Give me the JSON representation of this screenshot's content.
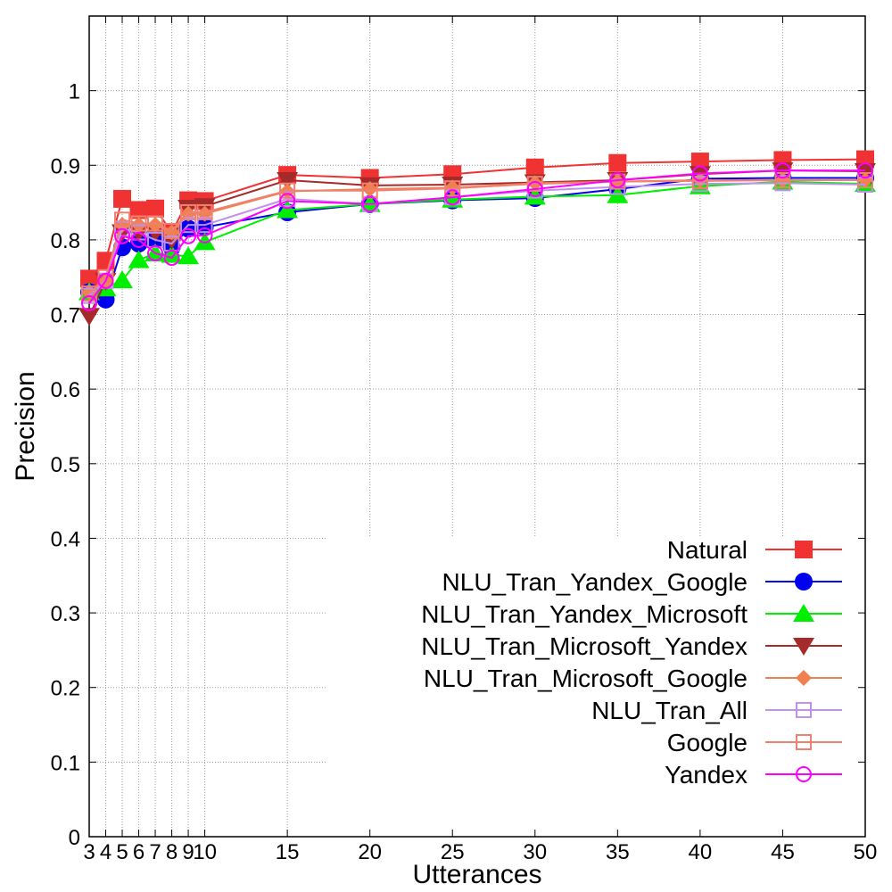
{
  "chart_data": {
    "type": "line",
    "title": "",
    "xlabel": "Utterances",
    "ylabel": "Precision",
    "xlim": [
      3,
      50
    ],
    "ylim": [
      0,
      1.1
    ],
    "x_ticks": [
      3,
      4,
      5,
      6,
      7,
      8,
      9,
      10,
      15,
      20,
      25,
      30,
      35,
      40,
      45,
      50
    ],
    "y_ticks": [
      0,
      0.1,
      0.2,
      0.3,
      0.4,
      0.5,
      0.6,
      0.7,
      0.8,
      0.9,
      1
    ],
    "y_tick_labels": [
      "0",
      "0.1",
      "0.2",
      "0.3",
      "0.4",
      "0.5",
      "0.6",
      "0.7",
      "0.8",
      "0.9",
      "1"
    ],
    "grid": true,
    "legend_position": "bottom-right",
    "x": [
      3,
      4,
      5,
      6,
      7,
      8,
      9,
      10,
      15,
      20,
      25,
      30,
      35,
      40,
      45,
      50
    ],
    "series": [
      {
        "name": "Natural",
        "color": "#f03232",
        "marker": "square-filled",
        "values": [
          0.748,
          0.772,
          0.855,
          0.84,
          0.842,
          0.81,
          0.853,
          0.852,
          0.887,
          0.883,
          0.888,
          0.897,
          0.903,
          0.905,
          0.907,
          0.908
        ]
      },
      {
        "name": "NLU_Tran_Yandex_Google",
        "color": "#0000ee",
        "marker": "circle-filled",
        "values": [
          0.73,
          0.72,
          0.79,
          0.795,
          0.8,
          0.79,
          0.815,
          0.817,
          0.837,
          0.848,
          0.853,
          0.856,
          0.868,
          0.882,
          0.883,
          0.883
        ]
      },
      {
        "name": "NLU_Tran_Yandex_Microsoft",
        "color": "#00ee00",
        "marker": "triangle-up-filled",
        "values": [
          0.73,
          0.735,
          0.746,
          0.773,
          0.782,
          0.78,
          0.778,
          0.797,
          0.84,
          0.848,
          0.854,
          0.858,
          0.86,
          0.872,
          0.878,
          0.875
        ]
      },
      {
        "name": "NLU_Tran_Microsoft_Yandex",
        "color": "#a52a2a",
        "marker": "triangle-down-filled",
        "values": [
          0.698,
          0.745,
          0.81,
          0.81,
          0.81,
          0.8,
          0.843,
          0.845,
          0.88,
          0.873,
          0.874,
          0.877,
          0.88,
          0.888,
          0.893,
          0.892
        ]
      },
      {
        "name": "NLU_Tran_Microsoft_Google",
        "color": "#f08050",
        "marker": "diamond-filled",
        "values": [
          0.73,
          0.745,
          0.82,
          0.82,
          0.82,
          0.81,
          0.835,
          0.835,
          0.865,
          0.868,
          0.87,
          0.876,
          0.878,
          0.88,
          0.88,
          0.88
        ]
      },
      {
        "name": "NLU_Tran_All",
        "color": "#c090f0",
        "marker": "square-open",
        "values": [
          0.725,
          0.745,
          0.815,
          0.81,
          0.8,
          0.795,
          0.82,
          0.82,
          0.855,
          0.848,
          0.857,
          0.866,
          0.871,
          0.875,
          0.876,
          0.874
        ]
      },
      {
        "name": "Google",
        "color": "#f08070",
        "marker": "square-open",
        "values": [
          0.728,
          0.75,
          0.827,
          0.822,
          0.822,
          0.812,
          0.837,
          0.837,
          0.866,
          0.866,
          0.869,
          0.875,
          0.878,
          0.879,
          0.88,
          0.88
        ]
      },
      {
        "name": "Yandex",
        "color": "#ff00ff",
        "marker": "circle-open",
        "values": [
          0.715,
          0.745,
          0.805,
          0.8,
          0.782,
          0.776,
          0.805,
          0.806,
          0.852,
          0.848,
          0.857,
          0.868,
          0.88,
          0.889,
          0.893,
          0.893
        ]
      }
    ]
  }
}
